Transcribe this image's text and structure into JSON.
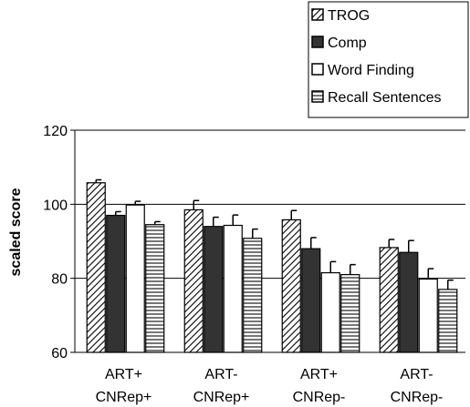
{
  "chart_data": {
    "type": "bar",
    "ylabel": "scaled score",
    "xlabel": "",
    "ylim": [
      60,
      120
    ],
    "yticks": [
      60,
      80,
      100,
      120
    ],
    "grid": "horizontal gridlines at major ticks",
    "legend_position": "top-right",
    "categories": [
      [
        "ART+",
        "CNRep+"
      ],
      [
        "ART-",
        "CNRep+"
      ],
      [
        "ART+",
        "CNRep-"
      ],
      [
        "ART-",
        "CNRep-"
      ]
    ],
    "series": [
      {
        "name": "TROG",
        "pattern": "diagonal-hatch",
        "values": [
          105.8,
          98.5,
          95.8,
          88.3
        ],
        "errors": [
          0.8,
          2.5,
          2.5,
          2.2
        ]
      },
      {
        "name": "Comp",
        "pattern": "solid-dark",
        "color": "#333333",
        "values": [
          97.0,
          94.0,
          88.0,
          87.0
        ],
        "errors": [
          1.0,
          2.5,
          3.0,
          3.2
        ]
      },
      {
        "name": "Word Finding",
        "pattern": "white",
        "color": "#ffffff",
        "values": [
          99.8,
          94.3,
          81.5,
          79.8
        ],
        "errors": [
          1.0,
          2.8,
          3.0,
          2.8
        ]
      },
      {
        "name": "Recall Sentences",
        "pattern": "horizontal-stripes",
        "values": [
          94.5,
          90.8,
          81.0,
          77.0
        ],
        "errors": [
          0.8,
          2.5,
          2.7,
          2.5
        ]
      }
    ]
  }
}
